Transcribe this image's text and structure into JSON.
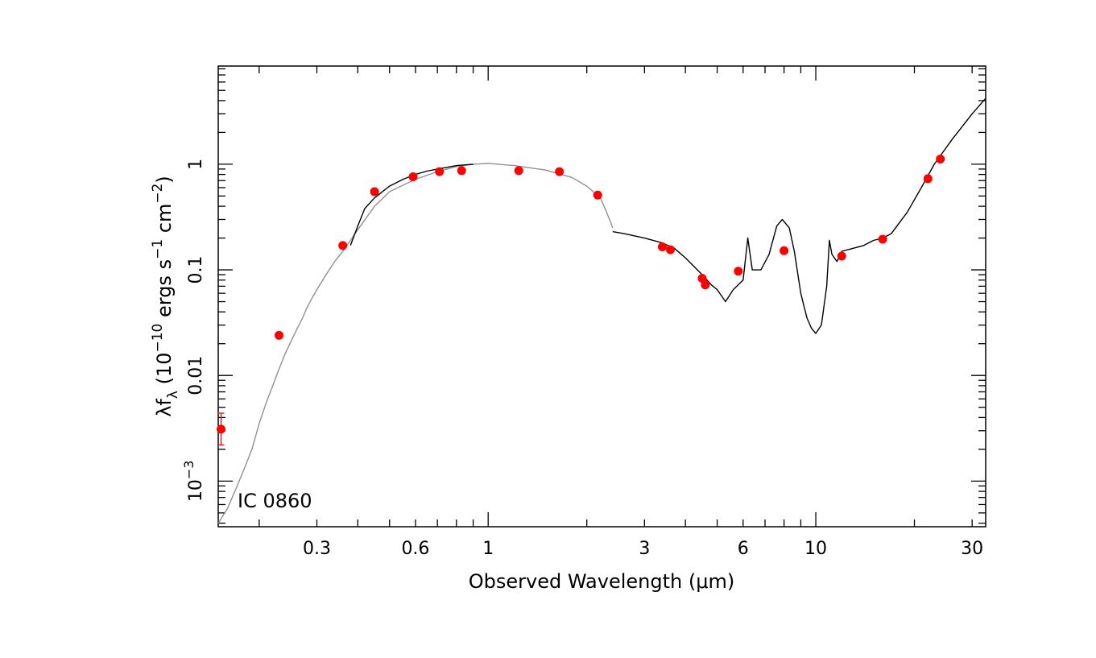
{
  "chart_data": {
    "type": "scatter",
    "annotation": "IC 0860",
    "xlabel": "Observed Wavelength (μm)",
    "ylabel_parts": {
      "lambda_f": "λf",
      "sub": "λ",
      "units_a": " (10",
      "exp_a": "−10",
      "units_b": " ergs s",
      "exp_b": "−1",
      "units_c": " cm",
      "exp_c": "−2",
      "units_d": ")"
    },
    "x_scale": "log",
    "y_scale": "log",
    "xlim": [
      0.15,
      33
    ],
    "ylim": [
      0.00037,
      8.5
    ],
    "x_ticks": [
      {
        "v": 0.3,
        "label": "0.3"
      },
      {
        "v": 0.6,
        "label": "0.6"
      },
      {
        "v": 1,
        "label": "1"
      },
      {
        "v": 3,
        "label": "3"
      },
      {
        "v": 6,
        "label": "6"
      },
      {
        "v": 10,
        "label": "10"
      },
      {
        "v": 30,
        "label": "30"
      }
    ],
    "y_ticks": [
      {
        "v": 1,
        "label": "1"
      },
      {
        "v": 0.1,
        "label": "0.1"
      },
      {
        "v": 0.01,
        "label": "0.01"
      },
      {
        "v": 0.001,
        "label": "10",
        "exp": "−3"
      }
    ],
    "grid": false,
    "model_gray": [
      [
        0.15,
        0.0004
      ],
      [
        0.16,
        0.00055
      ],
      [
        0.17,
        0.00085
      ],
      [
        0.18,
        0.0013
      ],
      [
        0.19,
        0.002
      ],
      [
        0.2,
        0.0035
      ],
      [
        0.21,
        0.0055
      ],
      [
        0.22,
        0.008
      ],
      [
        0.23,
        0.0115
      ],
      [
        0.24,
        0.016
      ],
      [
        0.25,
        0.021
      ],
      [
        0.26,
        0.027
      ],
      [
        0.27,
        0.034
      ],
      [
        0.28,
        0.044
      ],
      [
        0.29,
        0.054
      ],
      [
        0.3,
        0.065
      ],
      [
        0.32,
        0.09
      ],
      [
        0.34,
        0.12
      ],
      [
        0.36,
        0.15
      ],
      [
        0.38,
        0.19
      ],
      [
        0.4,
        0.24
      ],
      [
        0.45,
        0.4
      ],
      [
        0.5,
        0.55
      ],
      [
        0.6,
        0.72
      ],
      [
        0.7,
        0.85
      ],
      [
        0.8,
        0.95
      ],
      [
        0.9,
        1.0
      ],
      [
        1.0,
        1.02
      ],
      [
        1.2,
        0.97
      ],
      [
        1.5,
        0.88
      ],
      [
        1.8,
        0.75
      ],
      [
        2.0,
        0.62
      ],
      [
        2.2,
        0.48
      ],
      [
        2.3,
        0.35
      ],
      [
        2.4,
        0.25
      ]
    ],
    "model_black": [
      [
        0.38,
        0.17
      ],
      [
        0.4,
        0.26
      ],
      [
        0.42,
        0.38
      ],
      [
        0.45,
        0.48
      ],
      [
        0.5,
        0.62
      ],
      [
        0.55,
        0.72
      ],
      [
        0.6,
        0.8
      ],
      [
        0.65,
        0.86
      ],
      [
        0.7,
        0.9
      ],
      [
        0.8,
        0.97
      ],
      [
        0.9,
        1.0
      ],
      [
        2.4,
        0.23
      ],
      [
        2.6,
        0.22
      ],
      [
        3.0,
        0.2
      ],
      [
        3.4,
        0.18
      ],
      [
        3.7,
        0.16
      ],
      [
        4.0,
        0.13
      ],
      [
        4.5,
        0.09
      ],
      [
        4.8,
        0.072
      ],
      [
        5.0,
        0.065
      ],
      [
        5.3,
        0.05
      ],
      [
        5.6,
        0.065
      ],
      [
        6.0,
        0.08
      ],
      [
        6.2,
        0.2
      ],
      [
        6.4,
        0.1
      ],
      [
        6.8,
        0.1
      ],
      [
        7.2,
        0.14
      ],
      [
        7.6,
        0.26
      ],
      [
        7.9,
        0.3
      ],
      [
        8.3,
        0.25
      ],
      [
        8.6,
        0.15
      ],
      [
        9.0,
        0.06
      ],
      [
        9.4,
        0.035
      ],
      [
        9.7,
        0.028
      ],
      [
        10.0,
        0.025
      ],
      [
        10.4,
        0.03
      ],
      [
        10.8,
        0.07
      ],
      [
        11.0,
        0.19
      ],
      [
        11.2,
        0.14
      ],
      [
        11.6,
        0.12
      ],
      [
        12.0,
        0.15
      ],
      [
        13.0,
        0.16
      ],
      [
        14.0,
        0.17
      ],
      [
        15.0,
        0.19
      ],
      [
        16.0,
        0.2
      ],
      [
        17.0,
        0.22
      ],
      [
        19.0,
        0.35
      ],
      [
        21.0,
        0.6
      ],
      [
        23.0,
        1.0
      ],
      [
        26.0,
        1.7
      ],
      [
        30.0,
        3.0
      ],
      [
        33.0,
        4.2
      ]
    ],
    "points": [
      {
        "x": 0.153,
        "y": 0.0031,
        "err": [
          0.0022,
          0.0044
        ]
      },
      {
        "x": 0.23,
        "y": 0.024
      },
      {
        "x": 0.36,
        "y": 0.17
      },
      {
        "x": 0.45,
        "y": 0.55
      },
      {
        "x": 0.59,
        "y": 0.76
      },
      {
        "x": 0.71,
        "y": 0.85
      },
      {
        "x": 0.83,
        "y": 0.87
      },
      {
        "x": 1.24,
        "y": 0.87
      },
      {
        "x": 1.65,
        "y": 0.85
      },
      {
        "x": 2.16,
        "y": 0.51
      },
      {
        "x": 3.4,
        "y": 0.165
      },
      {
        "x": 3.6,
        "y": 0.155
      },
      {
        "x": 4.5,
        "y": 0.083
      },
      {
        "x": 4.6,
        "y": 0.072
      },
      {
        "x": 5.8,
        "y": 0.097
      },
      {
        "x": 8.0,
        "y": 0.152
      },
      {
        "x": 12.0,
        "y": 0.135
      },
      {
        "x": 16.0,
        "y": 0.195
      },
      {
        "x": 22.0,
        "y": 0.73
      },
      {
        "x": 24.0,
        "y": 1.12
      }
    ],
    "colors": {
      "points": "#ff0000",
      "model_gray": "#909090",
      "model_black": "#000000"
    }
  }
}
